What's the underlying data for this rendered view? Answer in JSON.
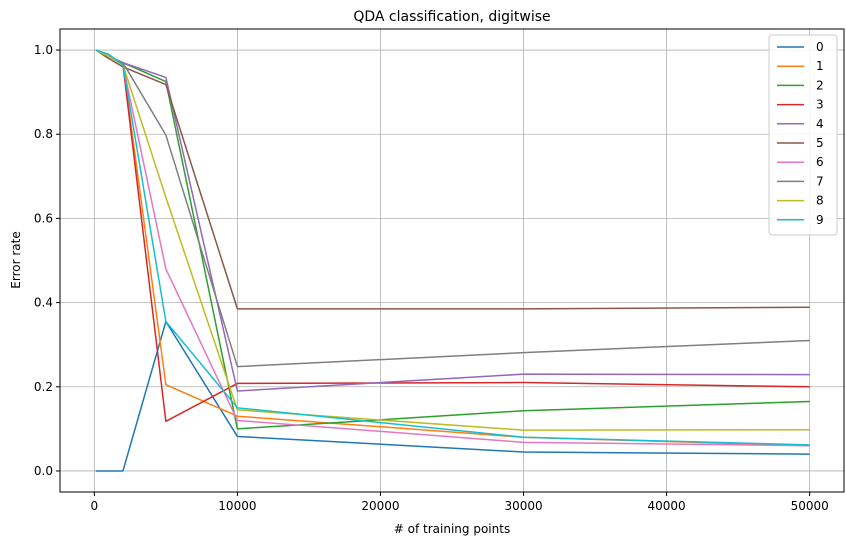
{
  "chart_data": {
    "type": "line",
    "title": "QDA classification, digitwise",
    "xlabel": "# of training points",
    "ylabel": "Error rate",
    "xlim": [
      -2400,
      52400
    ],
    "ylim": [
      -0.05,
      1.05
    ],
    "xticks": [
      0,
      10000,
      20000,
      30000,
      40000,
      50000
    ],
    "yticks": [
      0.0,
      0.2,
      0.4,
      0.6,
      0.8,
      1.0
    ],
    "xtick_labels": [
      "0",
      "10000",
      "20000",
      "30000",
      "40000",
      "50000"
    ],
    "ytick_labels": [
      "0.0",
      "0.2",
      "0.4",
      "0.6",
      "0.8",
      "1.0"
    ],
    "grid": true,
    "legend_position": "top-right",
    "x": [
      100,
      1000,
      2000,
      5000,
      10000,
      30000,
      50000
    ],
    "series": [
      {
        "name": "0",
        "color": "#1f77b4",
        "values": [
          0.0,
          0.0,
          0.0,
          0.355,
          0.082,
          0.045,
          0.04
        ]
      },
      {
        "name": "1",
        "color": "#ff7f0e",
        "values": [
          1.0,
          0.985,
          0.965,
          0.205,
          0.13,
          0.08,
          0.06
        ]
      },
      {
        "name": "2",
        "color": "#2ca02c",
        "values": [
          1.0,
          0.985,
          0.97,
          0.925,
          0.1,
          0.143,
          0.165
        ]
      },
      {
        "name": "3",
        "color": "#d62728",
        "values": [
          1.0,
          0.985,
          0.965,
          0.118,
          0.208,
          0.21,
          0.2
        ]
      },
      {
        "name": "4",
        "color": "#9467bd",
        "values": [
          1.0,
          0.985,
          0.97,
          0.935,
          0.19,
          0.23,
          0.229
        ]
      },
      {
        "name": "5",
        "color": "#8c564b",
        "values": [
          1.0,
          0.98,
          0.96,
          0.918,
          0.385,
          0.385,
          0.389
        ]
      },
      {
        "name": "6",
        "color": "#e377c2",
        "values": [
          1.0,
          0.985,
          0.965,
          0.48,
          0.12,
          0.068,
          0.06
        ]
      },
      {
        "name": "7",
        "color": "#7f7f7f",
        "values": [
          1.0,
          0.985,
          0.97,
          0.798,
          0.248,
          0.281,
          0.31
        ]
      },
      {
        "name": "8",
        "color": "#bcbd22",
        "values": [
          1.0,
          0.985,
          0.965,
          0.65,
          0.145,
          0.097,
          0.098
        ]
      },
      {
        "name": "9",
        "color": "#17becf",
        "values": [
          1.0,
          0.99,
          0.965,
          0.355,
          0.15,
          0.08,
          0.062
        ]
      }
    ]
  }
}
